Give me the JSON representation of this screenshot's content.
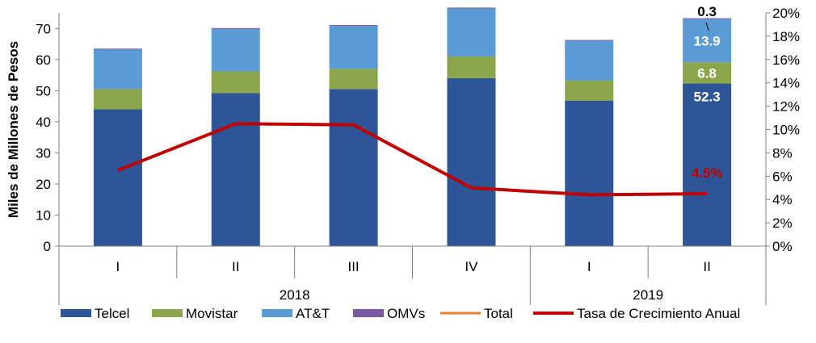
{
  "chart_data": {
    "type": "bar",
    "stacked": true,
    "ylabel": "Miles de Millones de Pesos",
    "ylim": [
      0,
      75
    ],
    "yticks": [
      "0",
      "10",
      "20",
      "30",
      "40",
      "50",
      "60",
      "70"
    ],
    "y2lim": [
      0,
      20
    ],
    "y2ticks": [
      "0%",
      "2%",
      "4%",
      "6%",
      "8%",
      "10%",
      "12%",
      "14%",
      "16%",
      "18%",
      "20%"
    ],
    "categories": [
      "I",
      "II",
      "III",
      "IV",
      "I",
      "II"
    ],
    "groups": [
      {
        "label": "2018",
        "span": 4
      },
      {
        "label": "2019",
        "span": 2
      }
    ],
    "series": [
      {
        "name": "Telcel",
        "color": "#2E5597",
        "values": [
          44.0,
          49.2,
          50.5,
          54.0,
          46.8,
          52.3
        ]
      },
      {
        "name": "Movistar",
        "color": "#8BA54B",
        "values": [
          6.5,
          7.0,
          6.5,
          7.0,
          6.5,
          6.8
        ]
      },
      {
        "name": "AT&T",
        "color": "#5B9BD5",
        "values": [
          12.7,
          13.6,
          13.8,
          15.4,
          12.7,
          13.9
        ]
      },
      {
        "name": "OMVs",
        "color": "#7B5AA5",
        "values": [
          0.3,
          0.3,
          0.3,
          0.3,
          0.3,
          0.3
        ]
      }
    ],
    "legend_extra": {
      "name": "Total",
      "color": "#ED7D31"
    },
    "line": {
      "name": "Tasa de Crecimiento Anual",
      "color": "#C00000",
      "axis": "right",
      "values": [
        6.5,
        10.5,
        10.4,
        5.0,
        4.4,
        4.5
      ]
    },
    "annotations": {
      "omvs": "0.3",
      "att": "13.9",
      "movistar": "6.8",
      "telcel": "52.3",
      "growth": "4.5%"
    },
    "legend_position": "bottom"
  }
}
